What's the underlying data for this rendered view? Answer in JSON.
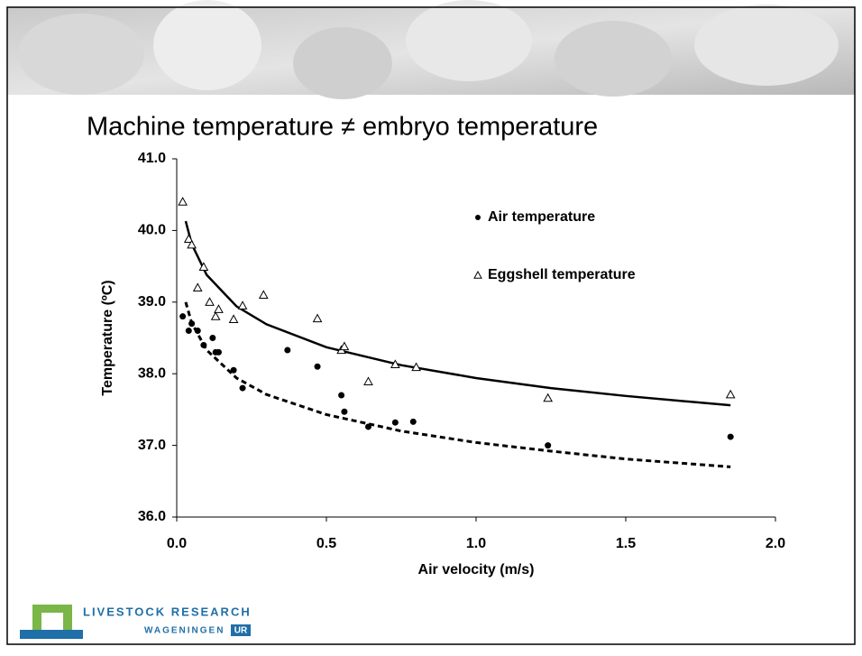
{
  "slide_title": "Machine temperature ≠ embryo temperature",
  "logo": {
    "line1": "LIVESTOCK RESEARCH",
    "line2": "WAGENINGEN",
    "badge": "UR"
  },
  "chart_data": {
    "type": "scatter",
    "x_label": "Air velocity (m/s)",
    "y_label": "Temperature (ºC)",
    "xlim": [
      0,
      2
    ],
    "ylim": [
      36,
      41
    ],
    "xticks": [
      {
        "value": 0,
        "label": "0.0"
      },
      0.5,
      {
        "value": 1,
        "label": "1.0"
      },
      1.5,
      {
        "value": 2,
        "label": "2.0"
      }
    ],
    "yticks": [
      {
        "value": 36,
        "label": "36.0"
      },
      {
        "value": 37,
        "label": "37.0"
      },
      {
        "value": 38,
        "label": "38.0"
      },
      {
        "value": 39,
        "label": "39.0"
      },
      {
        "value": 40,
        "label": "40.0"
      },
      {
        "value": 41,
        "label": "41.0"
      }
    ],
    "grid": false,
    "series": [
      {
        "name": "Air temperature",
        "marker": "dot",
        "color": "#000000",
        "x": [
          0.02,
          0.04,
          0.05,
          0.07,
          0.09,
          0.12,
          0.13,
          0.14,
          0.19,
          0.22,
          0.37,
          0.47,
          0.55,
          0.56,
          0.64,
          0.73,
          0.79,
          1.24,
          1.85
        ],
        "values": [
          38.8,
          38.6,
          38.7,
          38.6,
          38.4,
          38.5,
          38.3,
          38.3,
          38.05,
          37.8,
          38.33,
          38.1,
          37.7,
          37.47,
          37.26,
          37.32,
          37.33,
          37.0,
          37.12
        ]
      },
      {
        "name": "Eggshell temperature",
        "marker": "triangle",
        "color": "#000000",
        "x": [
          0.02,
          0.04,
          0.05,
          0.07,
          0.09,
          0.11,
          0.13,
          0.14,
          0.19,
          0.22,
          0.29,
          0.47,
          0.55,
          0.56,
          0.64,
          0.73,
          0.8,
          1.24,
          1.85
        ],
        "values": [
          40.4,
          39.88,
          39.8,
          39.2,
          39.49,
          39.0,
          38.8,
          38.9,
          38.76,
          38.95,
          39.1,
          38.77,
          38.33,
          38.38,
          37.89,
          38.13,
          38.09,
          37.66,
          37.71
        ]
      }
    ],
    "trendlines": [
      {
        "style": "solid",
        "color": "#000000",
        "x": [
          0.03,
          0.05,
          0.1,
          0.2,
          0.3,
          0.5,
          0.75,
          1.0,
          1.25,
          1.5,
          1.85
        ],
        "values": [
          40.13,
          39.81,
          39.38,
          38.94,
          38.69,
          38.37,
          38.12,
          37.94,
          37.8,
          37.69,
          37.56
        ]
      },
      {
        "style": "dashed",
        "color": "#000000",
        "x": [
          0.03,
          0.05,
          0.1,
          0.2,
          0.3,
          0.5,
          0.75,
          1.0,
          1.25,
          1.5,
          1.85
        ],
        "values": [
          39.0,
          38.71,
          38.33,
          37.94,
          37.71,
          37.43,
          37.2,
          37.04,
          36.92,
          36.81,
          36.7
        ]
      }
    ]
  }
}
